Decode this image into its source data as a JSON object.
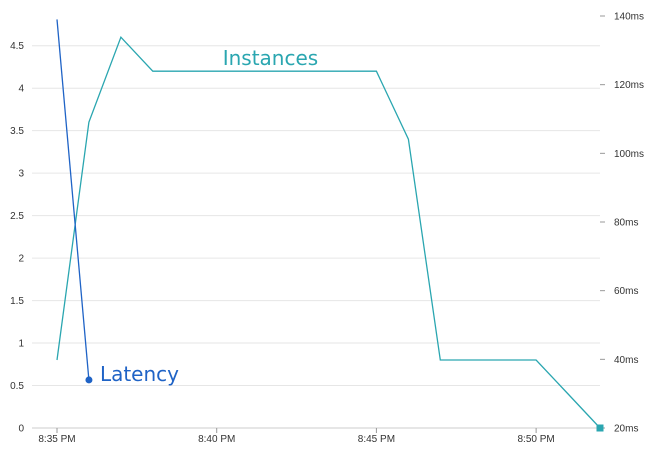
{
  "chart_data": {
    "type": "line",
    "x_ticks": [
      "8:35 PM",
      "8:40 PM",
      "8:45 PM",
      "8:50 PM"
    ],
    "y_left_ticks": [
      "0",
      "0.5",
      "1",
      "1.5",
      "2",
      "2.5",
      "3",
      "3.5",
      "4",
      "4.5"
    ],
    "y_left_range": [
      0,
      4.85
    ],
    "y_right_ticks": [
      "20ms",
      "40ms",
      "60ms",
      "80ms",
      "100ms",
      "120ms",
      "140ms"
    ],
    "y_right_range": [
      20,
      140
    ],
    "grid": true,
    "series": [
      {
        "name": "Instances",
        "axis": "left",
        "color": "#2aa6b0",
        "points": [
          {
            "x": "8:35 PM",
            "y": 0.8
          },
          {
            "x": "8:36 PM",
            "y": 3.6
          },
          {
            "x": "8:37 PM",
            "y": 4.6
          },
          {
            "x": "8:38 PM",
            "y": 4.2
          },
          {
            "x": "8:39 PM",
            "y": 4.2
          },
          {
            "x": "8:40 PM",
            "y": 4.2
          },
          {
            "x": "8:41 PM",
            "y": 4.2
          },
          {
            "x": "8:42 PM",
            "y": 4.2
          },
          {
            "x": "8:43 PM",
            "y": 4.2
          },
          {
            "x": "8:44 PM",
            "y": 4.2
          },
          {
            "x": "8:45 PM",
            "y": 4.2
          },
          {
            "x": "8:46 PM",
            "y": 3.4
          },
          {
            "x": "8:47 PM",
            "y": 0.8
          },
          {
            "x": "8:48 PM",
            "y": 0.8
          },
          {
            "x": "8:49 PM",
            "y": 0.8
          },
          {
            "x": "8:50 PM",
            "y": 0.8
          },
          {
            "x": "8:51 PM",
            "y": 0.4
          },
          {
            "x": "8:52 PM",
            "y": 0
          }
        ]
      },
      {
        "name": "Latency",
        "axis": "right",
        "color": "#1f63c6",
        "points": [
          {
            "x": "8:35 PM",
            "y": 139
          },
          {
            "x": "8:36 PM",
            "y": 34
          }
        ]
      }
    ]
  }
}
